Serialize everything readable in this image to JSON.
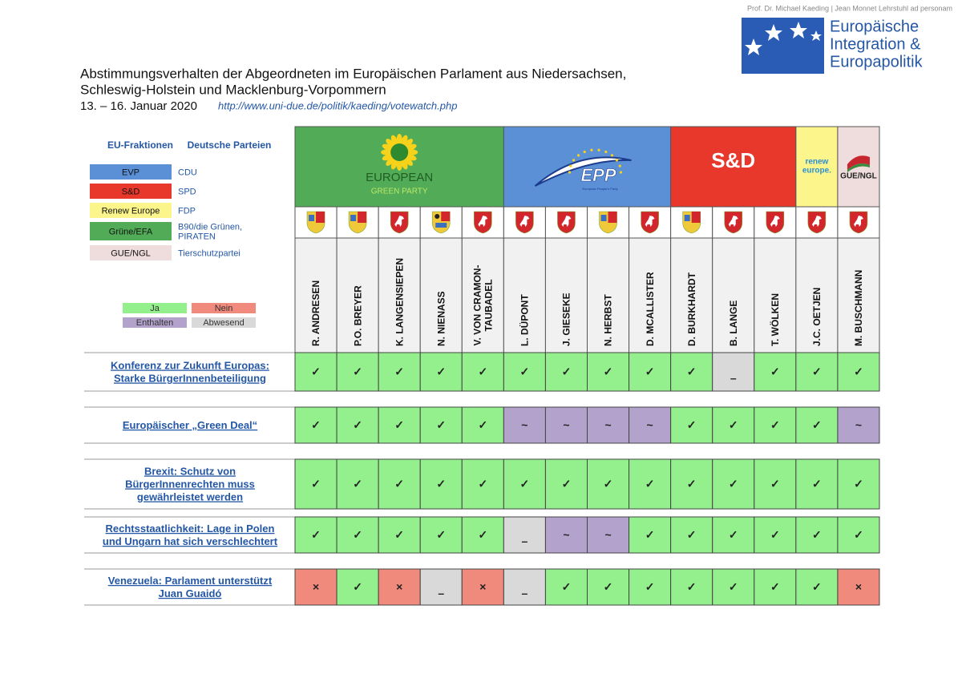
{
  "header": {
    "affiliation": "Prof. Dr. Michael Kaeding | Jean Monnet Lehrstuhl ad personam",
    "logo_lines": [
      "Europäische",
      "Integration &",
      "Europapolitik"
    ]
  },
  "title": {
    "lines": [
      "Abstimmungsverhalten der Abgeordneten im Europäischen Parlament aus Niedersachsen,",
      "Schleswig-Holstein und Macklenburg-Vorpommern"
    ],
    "date": "13. – 16. Januar 2020",
    "link": "http://www.uni-due.de/politik/kaeding/votewatch.php"
  },
  "legend": {
    "heading_groups": "EU-Fraktionen",
    "heading_parties": "Deutsche Parteien",
    "rows": [
      {
        "group": "EVP",
        "party": [
          "CDU"
        ],
        "color": "#5b8fd6"
      },
      {
        "group": "S&D",
        "party": [
          "SPD"
        ],
        "color": "#e8382c"
      },
      {
        "group": "Renew Europe",
        "party": [
          "FDP"
        ],
        "color": "#fbf58c"
      },
      {
        "group": "Grüne/EFA",
        "party": [
          "B90/die Grünen,",
          "PIRATEN"
        ],
        "color": "#52ab57"
      },
      {
        "group": "GUE/NGL",
        "party": [
          "Tierschutzpartei"
        ],
        "color": "#efdcdc"
      }
    ],
    "key": [
      {
        "label": "Ja",
        "color": "#93f08d"
      },
      {
        "label": "Nein",
        "color": "#ef8a7c"
      },
      {
        "label": "Enthalten",
        "color": "#b3a2cb"
      },
      {
        "label": "Abwesend",
        "color": "#d9d9d9"
      }
    ]
  },
  "groups": [
    {
      "lines": [
        "EUROPEAN",
        "GREEN PARTY"
      ],
      "color": "#52ab57",
      "span": 5
    },
    {
      "lines": [
        "EPP",
        "European People's Party"
      ],
      "color": "#5b8fd6",
      "span": 4
    },
    {
      "lines": [
        "S&D"
      ],
      "color": "#e8382c",
      "span": 3
    },
    {
      "lines": [
        "renew",
        "europe."
      ],
      "color": "#fbf58c",
      "span": 1
    },
    {
      "lines": [
        "GUE/NGL"
      ],
      "color": "#efdcdc",
      "span": 1
    }
  ],
  "members": [
    [
      "R. ANDRESEN"
    ],
    [
      "P.O. BREYER"
    ],
    [
      "K. LANGENSIEPEN"
    ],
    [
      "N. NIENASS"
    ],
    [
      "V. VON CRAMON-",
      "TAUBADEL"
    ],
    [
      "L. DÜPONT"
    ],
    [
      "J. GIESEKE"
    ],
    [
      "N. HERBST"
    ],
    [
      "D. MCALLISTER"
    ],
    [
      "D. BURKHARDT"
    ],
    [
      "B. LANGE"
    ],
    [
      "T. WÖLKEN"
    ],
    [
      "J.C. OETJEN"
    ],
    [
      "M. BUSCHMANN"
    ]
  ],
  "votes": [
    {
      "topic": [
        "Konferenz zur Zukunft Europas:",
        "Starke BürgerInnenbeteiligung"
      ],
      "cells": [
        [
          "✓",
          "#93f08d"
        ],
        [
          "✓",
          "#93f08d"
        ],
        [
          "✓",
          "#93f08d"
        ],
        [
          "✓",
          "#93f08d"
        ],
        [
          "✓",
          "#93f08d"
        ],
        [
          "✓",
          "#93f08d"
        ],
        [
          "✓",
          "#93f08d"
        ],
        [
          "✓",
          "#93f08d"
        ],
        [
          "✓",
          "#93f08d"
        ],
        [
          "✓",
          "#93f08d"
        ],
        [
          "–",
          "#d9d9d9"
        ],
        [
          "✓",
          "#93f08d"
        ],
        [
          "✓",
          "#93f08d"
        ],
        [
          "✓",
          "#93f08d"
        ]
      ]
    },
    {
      "topic": [
        "Europäischer „Green Deal“"
      ],
      "cells": [
        [
          "✓",
          "#93f08d"
        ],
        [
          "✓",
          "#93f08d"
        ],
        [
          "✓",
          "#93f08d"
        ],
        [
          "✓",
          "#93f08d"
        ],
        [
          "✓",
          "#93f08d"
        ],
        [
          "~",
          "#b3a2cb"
        ],
        [
          "~",
          "#b3a2cb"
        ],
        [
          "~",
          "#b3a2cb"
        ],
        [
          "~",
          "#b3a2cb"
        ],
        [
          "✓",
          "#93f08d"
        ],
        [
          "✓",
          "#93f08d"
        ],
        [
          "✓",
          "#93f08d"
        ],
        [
          "✓",
          "#93f08d"
        ],
        [
          "~",
          "#b3a2cb"
        ]
      ]
    },
    {
      "topic": [
        "Brexit: Schutz von",
        "BürgerInnenrechten muss",
        "gewährleistet werden"
      ],
      "cells": [
        [
          "✓",
          "#93f08d"
        ],
        [
          "✓",
          "#93f08d"
        ],
        [
          "✓",
          "#93f08d"
        ],
        [
          "✓",
          "#93f08d"
        ],
        [
          "✓",
          "#93f08d"
        ],
        [
          "✓",
          "#93f08d"
        ],
        [
          "✓",
          "#93f08d"
        ],
        [
          "✓",
          "#93f08d"
        ],
        [
          "✓",
          "#93f08d"
        ],
        [
          "✓",
          "#93f08d"
        ],
        [
          "✓",
          "#93f08d"
        ],
        [
          "✓",
          "#93f08d"
        ],
        [
          "✓",
          "#93f08d"
        ],
        [
          "✓",
          "#93f08d"
        ]
      ]
    },
    {
      "topic": [
        "Rechtsstaatlichkeit: Lage in Polen",
        "und Ungarn hat sich verschlechtert"
      ],
      "cells": [
        [
          "✓",
          "#93f08d"
        ],
        [
          "✓",
          "#93f08d"
        ],
        [
          "✓",
          "#93f08d"
        ],
        [
          "✓",
          "#93f08d"
        ],
        [
          "✓",
          "#93f08d"
        ],
        [
          "–",
          "#d9d9d9"
        ],
        [
          "~",
          "#b3a2cb"
        ],
        [
          "~",
          "#b3a2cb"
        ],
        [
          "✓",
          "#93f08d"
        ],
        [
          "✓",
          "#93f08d"
        ],
        [
          "✓",
          "#93f08d"
        ],
        [
          "✓",
          "#93f08d"
        ],
        [
          "✓",
          "#93f08d"
        ],
        [
          "✓",
          "#93f08d"
        ]
      ]
    },
    {
      "topic": [
        "Venezuela: Parlament unterstützt",
        "Juan Guaidó"
      ],
      "cells": [
        [
          "×",
          "#ef8a7c"
        ],
        [
          "✓",
          "#93f08d"
        ],
        [
          "×",
          "#ef8a7c"
        ],
        [
          "–",
          "#d9d9d9"
        ],
        [
          "×",
          "#ef8a7c"
        ],
        [
          "–",
          "#d9d9d9"
        ],
        [
          "✓",
          "#93f08d"
        ],
        [
          "✓",
          "#93f08d"
        ],
        [
          "✓",
          "#93f08d"
        ],
        [
          "✓",
          "#93f08d"
        ],
        [
          "✓",
          "#93f08d"
        ],
        [
          "✓",
          "#93f08d"
        ],
        [
          "✓",
          "#93f08d"
        ],
        [
          "×",
          "#ef8a7c"
        ]
      ]
    }
  ]
}
